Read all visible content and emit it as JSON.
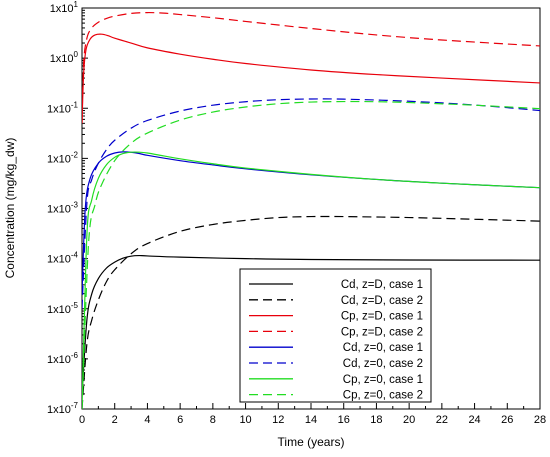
{
  "chart_data": {
    "type": "line",
    "title": "",
    "xlabel": "Time (years)",
    "ylabel": "Concentration (mg/kg_dw)",
    "xlim": [
      0,
      28
    ],
    "ylim": [
      1e-07,
      10
    ],
    "yscale": "log",
    "grid": false,
    "legend_position": "bottom-right",
    "x_ticks": [
      "0",
      "2",
      "4",
      "6",
      "8",
      "10",
      "12",
      "14",
      "16",
      "18",
      "20",
      "22",
      "24",
      "26",
      "28"
    ],
    "y_ticks": [
      {
        "mant": "1x10",
        "exp": "1"
      },
      {
        "mant": "1x10",
        "exp": "0"
      },
      {
        "mant": "1x10",
        "exp": "-1"
      },
      {
        "mant": "1x10",
        "exp": "-2"
      },
      {
        "mant": "1x10",
        "exp": "-3"
      },
      {
        "mant": "1x10",
        "exp": "-4"
      },
      {
        "mant": "1x10",
        "exp": "-5"
      },
      {
        "mant": "1x10",
        "exp": "-6"
      },
      {
        "mant": "1x10",
        "exp": "-7"
      }
    ],
    "series": [
      {
        "name": "Cd, z=D, case 1",
        "color": "#000000",
        "dash": "solid",
        "x": [
          0,
          0.3,
          0.6,
          1,
          1.5,
          2,
          2.5,
          3,
          3.5,
          4,
          6,
          10,
          14,
          20,
          28
        ],
        "y": [
          2e-07,
          6e-06,
          2e-05,
          4e-05,
          6.5e-05,
          8.5e-05,
          0.000102,
          0.000112,
          0.000115,
          0.000113,
          0.000107,
          0.0001,
          9.6e-05,
          9.4e-05,
          9.3e-05
        ]
      },
      {
        "name": "Cd, z=D, case 2",
        "color": "#000000",
        "dash": "dashed",
        "x": [
          0,
          0.3,
          0.6,
          1,
          1.5,
          2,
          3,
          4,
          6,
          8,
          10,
          12,
          14,
          16,
          20,
          24,
          28
        ],
        "y": [
          1e-07,
          2e-06,
          6e-06,
          1.5e-05,
          3.5e-05,
          6e-05,
          0.000125,
          0.0002,
          0.00035,
          0.00048,
          0.00058,
          0.00066,
          0.00069,
          0.00069,
          0.00066,
          0.00061,
          0.00056
        ]
      },
      {
        "name": "Cp, z=D, case 1",
        "color": "#e8000b",
        "dash": "solid",
        "x": [
          0,
          0.1,
          0.25,
          0.5,
          0.8,
          1.2,
          1.6,
          2,
          3,
          4,
          6,
          8,
          10,
          14,
          18,
          22,
          28
        ],
        "y": [
          0.05,
          0.5,
          1.5,
          2.4,
          2.9,
          3.0,
          2.8,
          2.5,
          2.0,
          1.6,
          1.2,
          0.95,
          0.78,
          0.58,
          0.47,
          0.4,
          0.32
        ]
      },
      {
        "name": "Cp, z=D, case 2",
        "color": "#e8000b",
        "dash": "dashed",
        "x": [
          0,
          0.1,
          0.3,
          0.6,
          1,
          1.5,
          2,
          3,
          4,
          5,
          6,
          8,
          10,
          14,
          18,
          22,
          28
        ],
        "y": [
          0.05,
          0.8,
          2.5,
          4.0,
          5.2,
          6.2,
          6.9,
          7.8,
          8.1,
          7.9,
          7.4,
          6.4,
          5.4,
          3.9,
          2.9,
          2.3,
          1.75
        ]
      },
      {
        "name": "Cd, z=0, case 1",
        "color": "#0000cc",
        "dash": "solid",
        "x": [
          0,
          0.2,
          0.5,
          1,
          1.5,
          2,
          2.5,
          3,
          3.5,
          4,
          6,
          8,
          10,
          14,
          18,
          22,
          28
        ],
        "y": [
          2e-05,
          0.001,
          0.004,
          0.008,
          0.011,
          0.0128,
          0.0135,
          0.0132,
          0.0125,
          0.0115,
          0.009,
          0.0074,
          0.0062,
          0.0047,
          0.0038,
          0.0032,
          0.0026
        ]
      },
      {
        "name": "Cd, z=0, case 2",
        "color": "#0000cc",
        "dash": "dashed",
        "x": [
          0,
          0.3,
          0.6,
          1,
          1.5,
          2,
          3,
          4,
          6,
          8,
          10,
          12,
          14,
          16,
          20,
          24,
          28
        ],
        "y": [
          1e-05,
          0.0013,
          0.0038,
          0.008,
          0.015,
          0.023,
          0.04,
          0.057,
          0.088,
          0.115,
          0.135,
          0.148,
          0.153,
          0.152,
          0.138,
          0.116,
          0.09
        ]
      },
      {
        "name": "Cp, z=0, case 1",
        "color": "#22dd22",
        "dash": "solid",
        "x": [
          0,
          0.3,
          0.6,
          1,
          1.5,
          2,
          2.5,
          3,
          3.5,
          4,
          5,
          6,
          8,
          10,
          14,
          18,
          22,
          28
        ],
        "y": [
          1e-07,
          0.0003,
          0.0015,
          0.004,
          0.0075,
          0.0105,
          0.0125,
          0.0133,
          0.0133,
          0.0128,
          0.0112,
          0.0098,
          0.0078,
          0.0064,
          0.0048,
          0.0038,
          0.0032,
          0.0026
        ]
      },
      {
        "name": "Cp, z=0, case 2",
        "color": "#22dd22",
        "dash": "dashed",
        "x": [
          0,
          0.4,
          0.8,
          1.2,
          2,
          3,
          4,
          6,
          8,
          10,
          12,
          14,
          16,
          18,
          20,
          24,
          28
        ],
        "y": [
          1e-07,
          0.0002,
          0.0012,
          0.003,
          0.009,
          0.02,
          0.032,
          0.058,
          0.084,
          0.106,
          0.123,
          0.133,
          0.136,
          0.135,
          0.13,
          0.115,
          0.098
        ]
      }
    ]
  }
}
